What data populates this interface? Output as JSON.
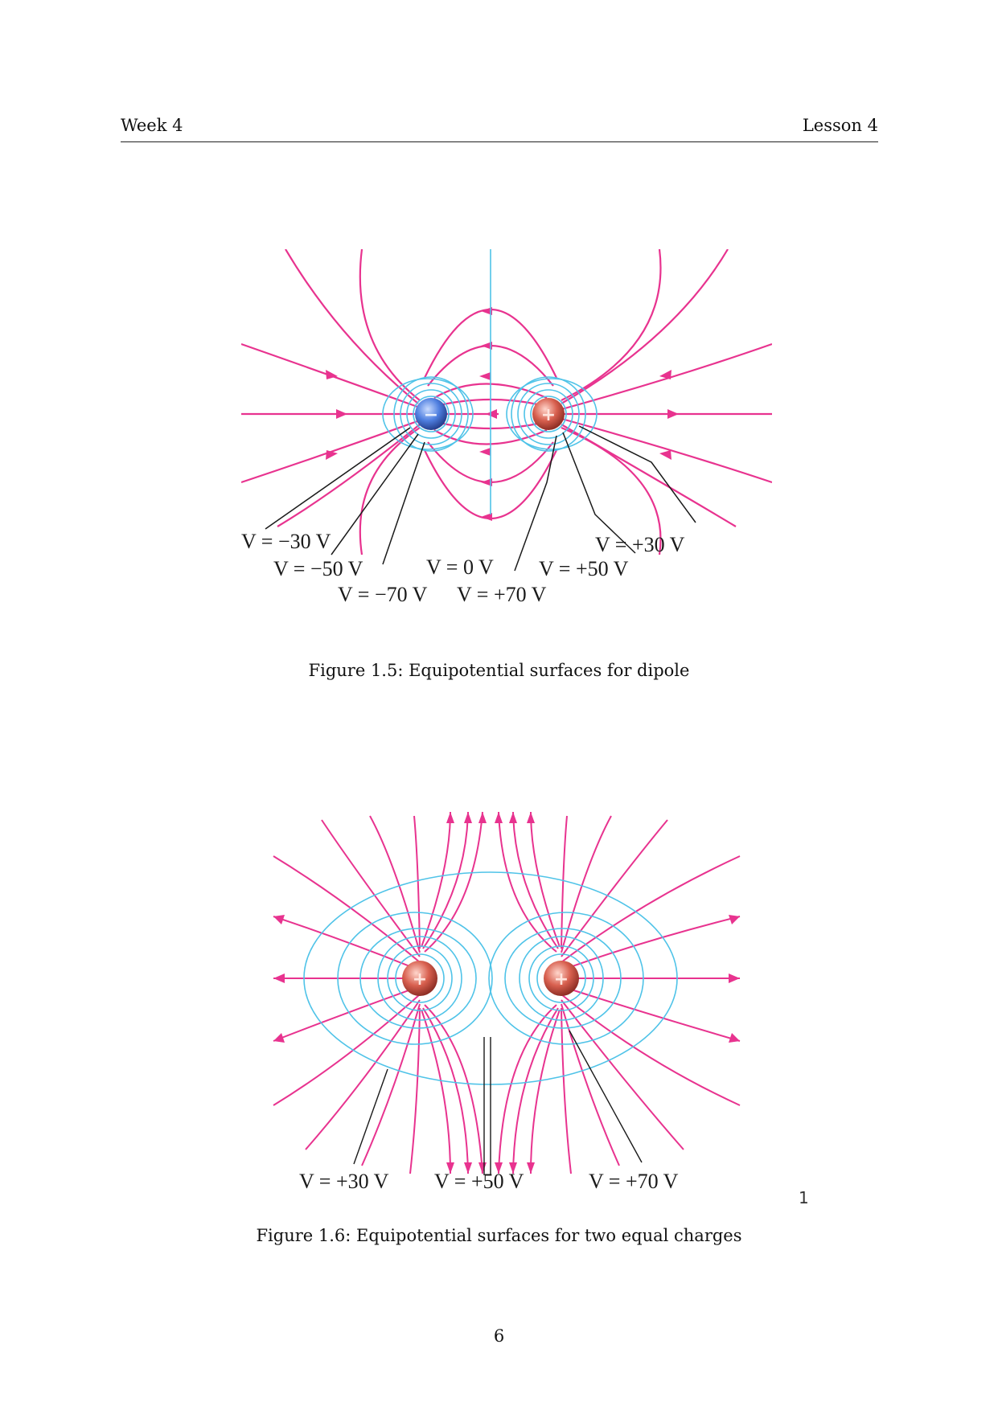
{
  "header": {
    "left": "Week 4",
    "right": "Lesson 4"
  },
  "figure1": {
    "caption": "Figure 1.5: Equipotential surfaces for dipole",
    "charges": {
      "negative": "−",
      "positive": "+"
    },
    "labels": [
      "V = −30 V",
      "V = −50 V",
      "V = −70 V",
      "V = 0 V",
      "V = +70 V",
      "V = +50 V",
      "V = +30 V"
    ],
    "colors": {
      "field_line": "#e8338f",
      "equipotential": "#4fc3e8",
      "negative_charge": "#3d6fd1",
      "positive_charge": "#d2574c"
    }
  },
  "figure2": {
    "caption": "Figure 1.6: Equipotential surfaces for two equal charges",
    "charges": {
      "left": "+",
      "right": "+"
    },
    "labels": [
      "V = +30 V",
      "V = +50 V",
      "V = +70 V"
    ],
    "colors": {
      "field_line": "#e8338f",
      "equipotential": "#4fc3e8",
      "positive_charge": "#d2574c"
    }
  },
  "stray_mark": "1",
  "page_number": "6"
}
